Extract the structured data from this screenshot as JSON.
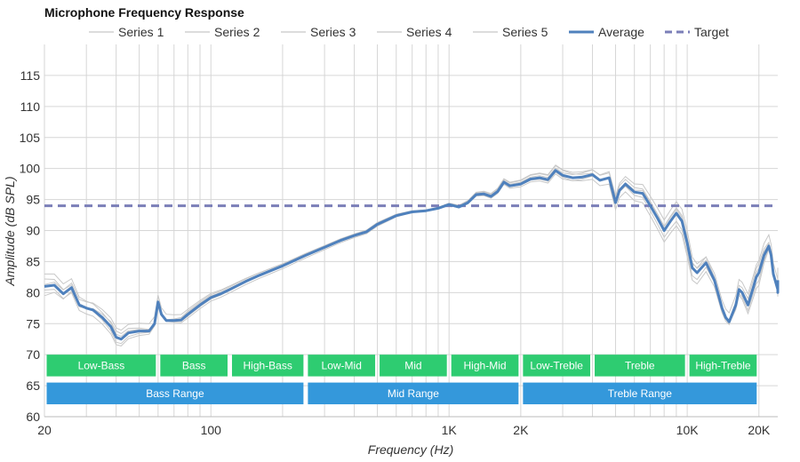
{
  "chart_data": {
    "type": "line",
    "title": "Microphone Frequency Response",
    "xlabel": "Frequency (Hz)",
    "ylabel": "Amplitude (dB SPL)",
    "x_scale": "log",
    "xlim": [
      20,
      24000
    ],
    "ylim": [
      60,
      120
    ],
    "x_ticks": [
      {
        "value": 20,
        "label": "20"
      },
      {
        "value": 100,
        "label": "100"
      },
      {
        "value": 1000,
        "label": "1K"
      },
      {
        "value": 2000,
        "label": "2K"
      },
      {
        "value": 10000,
        "label": "10K"
      },
      {
        "value": 20000,
        "label": "20K"
      }
    ],
    "y_ticks": [
      60,
      65,
      70,
      75,
      80,
      85,
      90,
      95,
      100,
      105,
      110,
      115
    ],
    "grid": true,
    "legend_position": "top",
    "target_db": 94,
    "average": {
      "name": "Average",
      "color": "#4f81bd",
      "points": [
        [
          20,
          81
        ],
        [
          22,
          81.2
        ],
        [
          24,
          79.8
        ],
        [
          26,
          80.8
        ],
        [
          28,
          78
        ],
        [
          30,
          77.5
        ],
        [
          32,
          77.2
        ],
        [
          35,
          76
        ],
        [
          38,
          74.5
        ],
        [
          40,
          72.8
        ],
        [
          42,
          72.5
        ],
        [
          45,
          73.5
        ],
        [
          50,
          73.8
        ],
        [
          55,
          73.8
        ],
        [
          58,
          75
        ],
        [
          60,
          78.5
        ],
        [
          62,
          76.5
        ],
        [
          65,
          75.5
        ],
        [
          70,
          75.5
        ],
        [
          75,
          75.6
        ],
        [
          80,
          76.5
        ],
        [
          90,
          78
        ],
        [
          100,
          79.2
        ],
        [
          110,
          79.8
        ],
        [
          120,
          80.5
        ],
        [
          140,
          81.8
        ],
        [
          160,
          82.8
        ],
        [
          180,
          83.6
        ],
        [
          200,
          84.3
        ],
        [
          250,
          86
        ],
        [
          300,
          87.3
        ],
        [
          350,
          88.4
        ],
        [
          400,
          89.2
        ],
        [
          450,
          89.8
        ],
        [
          500,
          91
        ],
        [
          600,
          92.4
        ],
        [
          700,
          93
        ],
        [
          800,
          93.2
        ],
        [
          900,
          93.6
        ],
        [
          1000,
          94.2
        ],
        [
          1100,
          93.8
        ],
        [
          1200,
          94.5
        ],
        [
          1300,
          95.8
        ],
        [
          1400,
          95.9
        ],
        [
          1500,
          95.5
        ],
        [
          1600,
          96.3
        ],
        [
          1700,
          97.8
        ],
        [
          1800,
          97.2
        ],
        [
          2000,
          97.5
        ],
        [
          2200,
          98.3
        ],
        [
          2400,
          98.5
        ],
        [
          2600,
          98.2
        ],
        [
          2800,
          99.7
        ],
        [
          3000,
          98.9
        ],
        [
          3300,
          98.5
        ],
        [
          3600,
          98.6
        ],
        [
          4000,
          99
        ],
        [
          4300,
          98.1
        ],
        [
          4700,
          98.5
        ],
        [
          5000,
          94.5
        ],
        [
          5200,
          96.5
        ],
        [
          5500,
          97.5
        ],
        [
          6000,
          96.2
        ],
        [
          6500,
          96
        ],
        [
          7000,
          94
        ],
        [
          7500,
          92
        ],
        [
          8000,
          90
        ],
        [
          8500,
          91.5
        ],
        [
          9000,
          92.8
        ],
        [
          9500,
          91.5
        ],
        [
          10000,
          88
        ],
        [
          10500,
          84
        ],
        [
          11000,
          83.2
        ],
        [
          12000,
          84.8
        ],
        [
          13000,
          82
        ],
        [
          14000,
          77.5
        ],
        [
          14500,
          76
        ],
        [
          15000,
          75.3
        ],
        [
          16000,
          78
        ],
        [
          16500,
          80.5
        ],
        [
          17000,
          80
        ],
        [
          18000,
          78
        ],
        [
          19000,
          81
        ],
        [
          19500,
          82.5
        ],
        [
          20000,
          83.2
        ],
        [
          21000,
          86
        ],
        [
          22000,
          87.5
        ],
        [
          22500,
          86
        ],
        [
          23000,
          83
        ],
        [
          24000,
          80.5
        ],
        [
          25000,
          80
        ],
        [
          26000,
          82
        ]
      ]
    },
    "series": [
      {
        "name": "Series 1",
        "color": "#c8c8c8"
      },
      {
        "name": "Series 2",
        "color": "#c8c8c8"
      },
      {
        "name": "Series 3",
        "color": "#c8c8c8"
      },
      {
        "name": "Series 4",
        "color": "#c8c8c8"
      },
      {
        "name": "Series 5",
        "color": "#c8c8c8"
      }
    ],
    "series_offsets": [
      [
        [
          20,
          -1.5
        ],
        [
          40,
          1
        ],
        [
          80,
          -0.6
        ],
        [
          500,
          -0.3
        ],
        [
          3000,
          0.8
        ],
        [
          10000,
          -1.5
        ],
        [
          20000,
          1.5
        ],
        [
          26000,
          -1
        ]
      ],
      [
        [
          20,
          1.2
        ],
        [
          40,
          -0.8
        ],
        [
          80,
          0.5
        ],
        [
          500,
          0.2
        ],
        [
          3000,
          -0.6
        ],
        [
          10000,
          1
        ],
        [
          20000,
          -1.2
        ],
        [
          26000,
          1
        ]
      ],
      [
        [
          20,
          -0.6
        ],
        [
          40,
          -1.2
        ],
        [
          80,
          0.3
        ],
        [
          500,
          -0.1
        ],
        [
          3000,
          0.4
        ],
        [
          10000,
          2
        ],
        [
          20000,
          -2
        ],
        [
          26000,
          2
        ]
      ],
      [
        [
          20,
          2
        ],
        [
          40,
          0.5
        ],
        [
          80,
          -0.3
        ],
        [
          500,
          0.3
        ],
        [
          3000,
          -0.3
        ],
        [
          10000,
          -2.2
        ],
        [
          20000,
          0.8
        ],
        [
          26000,
          -0.5
        ]
      ],
      [
        [
          20,
          0.3
        ],
        [
          40,
          1.5
        ],
        [
          80,
          0.8
        ],
        [
          500,
          -0.2
        ],
        [
          3000,
          0.9
        ],
        [
          10000,
          0.6
        ],
        [
          20000,
          2
        ],
        [
          26000,
          1.5
        ]
      ]
    ],
    "target": {
      "name": "Target",
      "color": "#7b7fb8"
    },
    "bands": [
      {
        "label": "Low-Bass",
        "from": 20,
        "to": 60,
        "row": 1,
        "color": "#2ecc71"
      },
      {
        "label": "Bass",
        "from": 60,
        "to": 120,
        "row": 1,
        "color": "#2ecc71"
      },
      {
        "label": "High-Bass",
        "from": 120,
        "to": 250,
        "row": 1,
        "color": "#2ecc71"
      },
      {
        "label": "Low-Mid",
        "from": 250,
        "to": 500,
        "row": 1,
        "color": "#2ecc71"
      },
      {
        "label": "Mid",
        "from": 500,
        "to": 1000,
        "row": 1,
        "color": "#2ecc71"
      },
      {
        "label": "High-Mid",
        "from": 1000,
        "to": 2000,
        "row": 1,
        "color": "#2ecc71"
      },
      {
        "label": "Low-Treble",
        "from": 2000,
        "to": 4000,
        "row": 1,
        "color": "#2ecc71"
      },
      {
        "label": "Treble",
        "from": 4000,
        "to": 10000,
        "row": 1,
        "color": "#2ecc71"
      },
      {
        "label": "High-Treble",
        "from": 10000,
        "to": 20000,
        "row": 1,
        "color": "#2ecc71"
      },
      {
        "label": "Bass Range",
        "from": 20,
        "to": 250,
        "row": 2,
        "color": "#3498db"
      },
      {
        "label": "Mid Range",
        "from": 250,
        "to": 2000,
        "row": 2,
        "color": "#3498db"
      },
      {
        "label": "Treble Range",
        "from": 2000,
        "to": 20000,
        "row": 2,
        "color": "#3498db"
      }
    ],
    "band_rows_db": {
      "1": [
        66.5,
        70
      ],
      "2": [
        62,
        65.5
      ]
    }
  }
}
